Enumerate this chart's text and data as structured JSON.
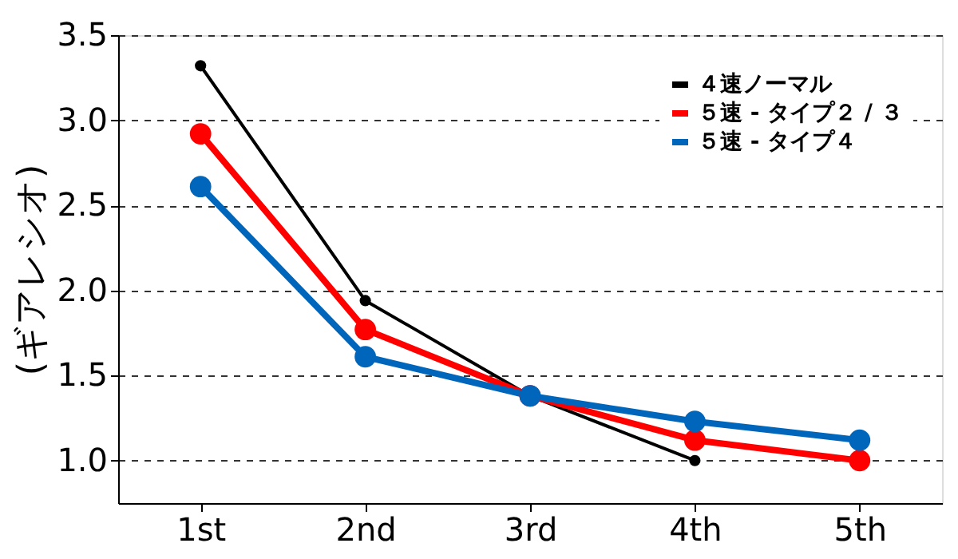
{
  "chart_data": {
    "type": "line",
    "ylabel": "(ギアレシオ)",
    "categories": [
      "1st",
      "2nd",
      "3rd",
      "4th",
      "5th"
    ],
    "series": [
      {
        "name": "４速ノーマル",
        "color": "#000000",
        "values": [
          3.32,
          1.94,
          1.38,
          1.0,
          null
        ]
      },
      {
        "name": "５速 - タイプ２ / ３",
        "color": "#ff0000",
        "values": [
          2.92,
          1.77,
          1.38,
          1.12,
          1.0
        ]
      },
      {
        "name": "５速 - タイプ４",
        "color": "#0066bb",
        "values": [
          2.61,
          1.61,
          1.38,
          1.23,
          1.12
        ]
      }
    ],
    "ylim": [
      0.75,
      3.5
    ],
    "yticks": [
      {
        "value": 1,
        "label": "1.0"
      },
      1.5,
      {
        "value": 2,
        "label": "2.0"
      },
      2.5,
      {
        "value": 3,
        "label": "3.0"
      },
      3.5
    ],
    "grid": "y",
    "legend": "top right",
    "marker": "circle",
    "line_style": "solid"
  }
}
